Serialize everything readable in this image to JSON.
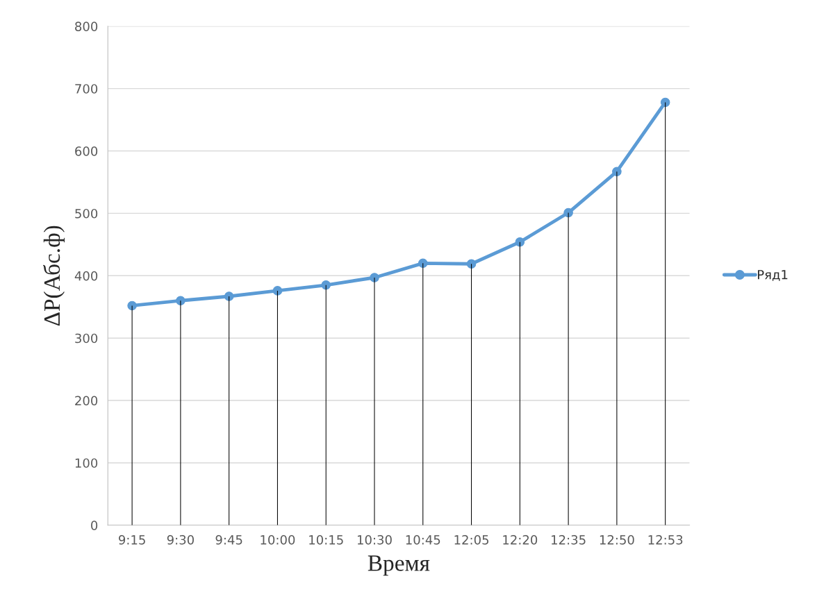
{
  "chart_data": {
    "type": "line",
    "xlabel": "Время",
    "ylabel": "ΔP(Абс.ф)",
    "categories": [
      "9:15",
      "9:30",
      "9:45",
      "10:00",
      "10:15",
      "10:30",
      "10:45",
      "12:05",
      "12:20",
      "12:35",
      "12:50",
      "12:53"
    ],
    "series": [
      {
        "name": "Ряд1",
        "color": "#5b9bd5",
        "values": [
          352,
          360,
          367,
          376,
          385,
          397,
          420,
          419,
          454,
          501,
          567,
          678
        ]
      },
      {
        "type": "bar",
        "color": "#000000",
        "values": [
          352,
          360,
          367,
          376,
          385,
          397,
          420,
          419,
          454,
          501,
          567,
          678
        ]
      }
    ],
    "ylim": [
      0,
      800
    ],
    "yticks": [
      0,
      100,
      200,
      300,
      400,
      500,
      600,
      700,
      800
    ],
    "grid": "y",
    "legend": "right",
    "marker": "circle",
    "line_style": "solid"
  }
}
